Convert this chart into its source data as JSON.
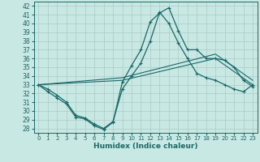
{
  "xlabel": "Humidex (Indice chaleur)",
  "xlim": [
    -0.5,
    23.5
  ],
  "ylim": [
    27.5,
    42.5
  ],
  "yticks": [
    28,
    29,
    30,
    31,
    32,
    33,
    34,
    35,
    36,
    37,
    38,
    39,
    40,
    41,
    42
  ],
  "xticks": [
    0,
    1,
    2,
    3,
    4,
    5,
    6,
    7,
    8,
    9,
    10,
    11,
    12,
    13,
    14,
    15,
    16,
    17,
    18,
    19,
    20,
    21,
    22,
    23
  ],
  "bg_color": "#c8e8e4",
  "grid_color": "#b0c8c4",
  "line_color": "#1a6868",
  "line1_x": [
    0,
    1,
    2,
    3,
    4,
    5,
    6,
    7,
    8,
    9,
    10,
    11,
    12,
    13,
    14,
    15,
    16,
    17,
    18,
    19,
    20,
    21,
    22,
    23
  ],
  "line1_y": [
    33.0,
    32.2,
    31.5,
    30.8,
    29.3,
    29.1,
    28.3,
    27.9,
    28.7,
    33.3,
    35.2,
    37.0,
    40.2,
    41.2,
    41.8,
    39.2,
    37.0,
    37.0,
    36.0,
    36.0,
    35.8,
    35.0,
    33.5,
    32.8
  ],
  "line1_markers": true,
  "line2_x": [
    0,
    9,
    19,
    23
  ],
  "line2_y": [
    33.0,
    33.5,
    36.0,
    33.0
  ],
  "line2_markers": false,
  "line3_x": [
    0,
    9,
    19,
    23
  ],
  "line3_y": [
    33.0,
    33.8,
    36.5,
    33.5
  ],
  "line3_markers": false,
  "line4_x": [
    0,
    1,
    2,
    3,
    4,
    5,
    6,
    7,
    8,
    9,
    10,
    11,
    12,
    13,
    14,
    15,
    16,
    17,
    18,
    19,
    20,
    21,
    22,
    23
  ],
  "line4_y": [
    33.0,
    32.5,
    31.8,
    31.0,
    29.5,
    29.2,
    28.5,
    28.0,
    28.8,
    32.5,
    34.0,
    35.5,
    38.0,
    41.3,
    40.0,
    37.8,
    36.0,
    34.3,
    33.8,
    33.5,
    33.0,
    32.5,
    32.2,
    33.0
  ],
  "line4_markers": true
}
